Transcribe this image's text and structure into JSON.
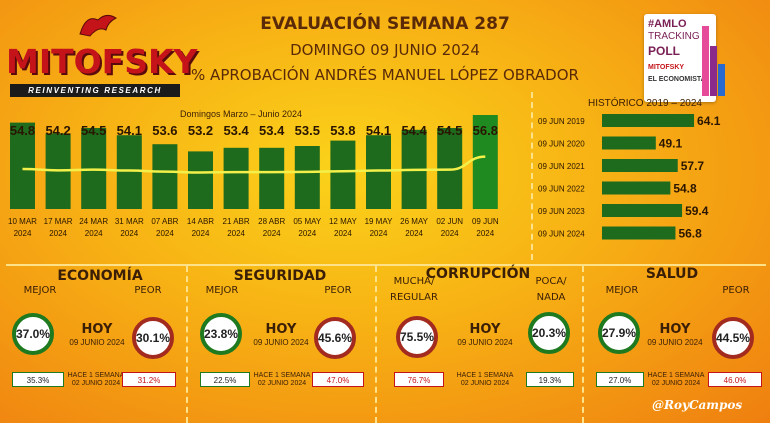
{
  "header": {
    "logo": "MITOFSKY",
    "tagline": "REINVENTING RESEARCH",
    "title": "EVALUACIÓN SEMANA 287",
    "date": "DOMINGO 09 JUNIO 2024",
    "subject": "% APROBACIÓN ANDRÉS MANUEL LÓPEZ OBRADOR"
  },
  "poll_badge": {
    "line1": "#AMLO",
    "line2": "TRACKING",
    "line3": "POLL",
    "brand1": "MITOFSKY",
    "brand2": "EL ECONOMISTA"
  },
  "chart_data": [
    {
      "type": "bar",
      "title": "Domingos Marzo – Junio 2024",
      "categories": [
        "10 MAR 2024",
        "17 MAR 2024",
        "24 MAR 2024",
        "31 MAR 2024",
        "07 ABR 2024",
        "14 ABR 2024",
        "21 ABR 2024",
        "28 ABR 2024",
        "05 MAY 2024",
        "12 MAY 2024",
        "19 MAY 2024",
        "26 MAY 2024",
        "02 JUN 2024",
        "09 JUN 2024"
      ],
      "category_lines": [
        [
          "10 MAR",
          "2024"
        ],
        [
          "17 MAR",
          "2024"
        ],
        [
          "24 MAR",
          "2024"
        ],
        [
          "31 MAR",
          "2024"
        ],
        [
          "07 ABR",
          "2024"
        ],
        [
          "14 ABR",
          "2024"
        ],
        [
          "21 ABR",
          "2024"
        ],
        [
          "28 ABR",
          "2024"
        ],
        [
          "05 MAY",
          "2024"
        ],
        [
          "12 MAY",
          "2024"
        ],
        [
          "19 MAY",
          "2024"
        ],
        [
          "26 MAY",
          "2024"
        ],
        [
          "02 JUN",
          "2024"
        ],
        [
          "09 JUN",
          "2024"
        ]
      ],
      "values": [
        54.8,
        54.2,
        54.5,
        54.1,
        53.6,
        53.2,
        53.4,
        53.4,
        53.5,
        53.8,
        54.1,
        54.4,
        54.5,
        56.8
      ],
      "value_labels": [
        "54.8",
        "54.2",
        "54.5",
        "54.1",
        "53.6",
        "53.2",
        "53.4",
        "53.4",
        "53.5",
        "53.8",
        "54.1",
        "54.4",
        "54.5",
        "56.8"
      ],
      "colors": {
        "bar": "#1e6b1e",
        "bar_last": "#1f8a1f",
        "trend": "#f3f04a"
      }
    },
    {
      "type": "bar",
      "orientation": "horizontal",
      "title": "HISTÓRICO 2019 – 2024",
      "categories": [
        "09 JUN 2019",
        "09 JUN 2020",
        "09 JUN 2021",
        "09 JUN 2022",
        "09 JUN 2023",
        "09 JUN 2024"
      ],
      "values": [
        64.1,
        49.1,
        57.7,
        54.8,
        59.4,
        56.8
      ],
      "value_labels": [
        "64.1",
        "49.1",
        "57.7",
        "54.8",
        "59.4",
        "56.8"
      ],
      "colors": {
        "bar": "#1e6b1e"
      }
    }
  ],
  "sections": [
    {
      "name": "ECONOMÍA",
      "good_label": "MEJOR",
      "bad_label": "PEOR",
      "good": "37.0%",
      "bad": "30.1%",
      "prev_good": "35.3%",
      "prev_bad": "31.2%"
    },
    {
      "name": "SEGURIDAD",
      "good_label": "MEJOR",
      "bad_label": "PEOR",
      "good": "23.8%",
      "bad": "45.6%",
      "prev_good": "22.5%",
      "prev_bad": "47.0%"
    },
    {
      "name": "CORRUPCIÓN",
      "good_label": "MUCHA/ REGULAR",
      "bad_label": "POCA/ NADA",
      "good": "75.5%",
      "bad": "20.3%",
      "prev_good": "76.7%",
      "prev_bad": "19.3%"
    },
    {
      "name": "SALUD",
      "good_label": "MEJOR",
      "bad_label": "PEOR",
      "good": "27.9%",
      "bad": "44.5%",
      "prev_good": "27.0%",
      "prev_bad": "46.0%"
    }
  ],
  "today": {
    "label": "HOY",
    "date": "09 JUNIO 2024"
  },
  "week_ago": {
    "label": "HACE 1 SEMANA",
    "date": "02 JUNIO 2024"
  },
  "signature": "@RoyCampos"
}
